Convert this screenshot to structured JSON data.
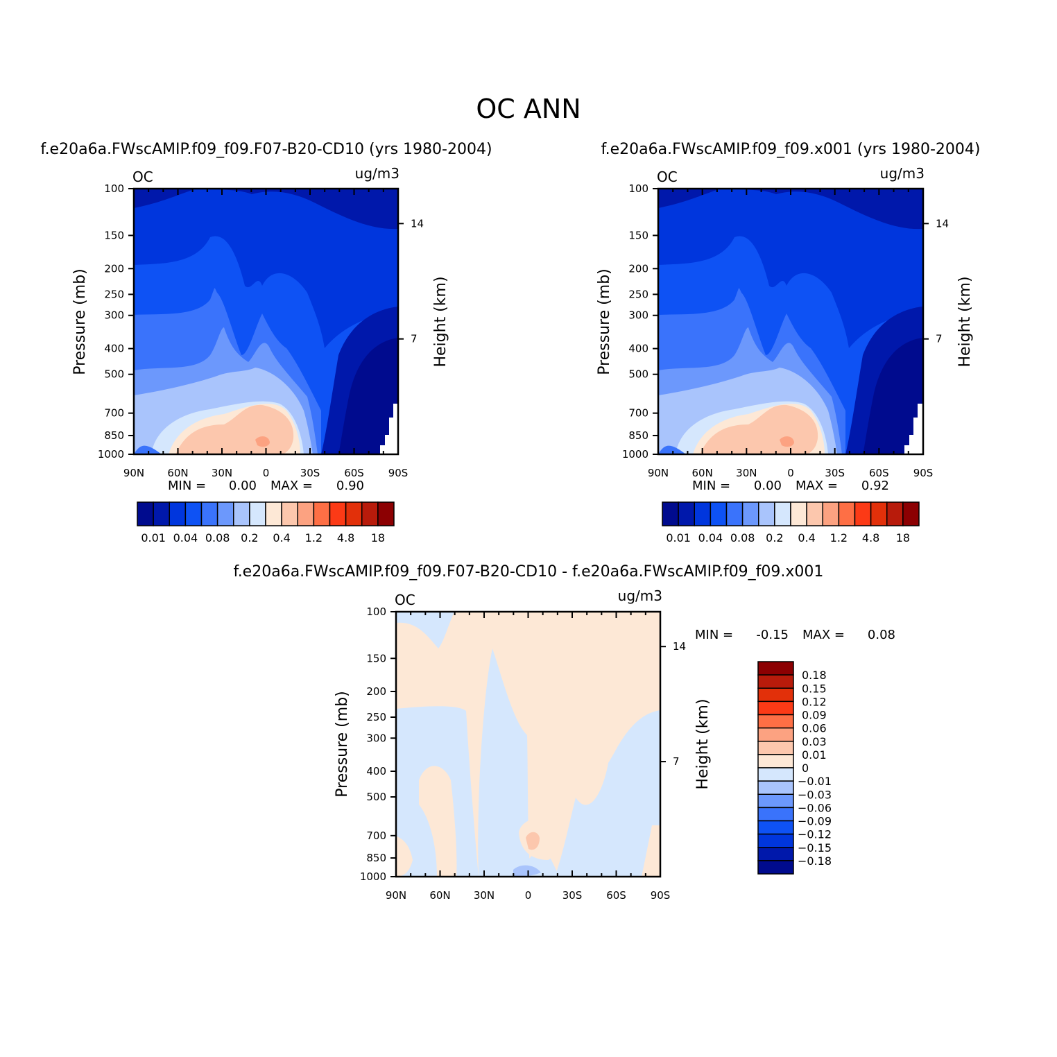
{
  "figure": {
    "title": "OC ANN"
  },
  "chart_data": [
    {
      "type": "heatmap",
      "title": "f.e20a6a.FWscAMIP.f09_f09.F07-B20-CD10 (yrs 1980-2004)",
      "variable_label": "OC",
      "units": "ug/m3",
      "xlabel": "",
      "ylabel": "Pressure (mb)",
      "y2label": "Height (km)",
      "x_ticks": [
        "90N",
        "60N",
        "30N",
        "0",
        "30S",
        "60S",
        "90S"
      ],
      "y_ticks": [
        100,
        150,
        200,
        250,
        300,
        400,
        500,
        700,
        850,
        1000
      ],
      "ylim": [
        1000,
        100
      ],
      "y2_ticks": [
        14,
        7
      ],
      "stats": {
        "min_label": "MIN =",
        "min": "0.00",
        "max_label": "MAX =",
        "max": "0.90"
      },
      "colorbar": {
        "orientation": "horizontal",
        "colors": [
          "#000b8e",
          "#0018ab",
          "#0036dd",
          "#0e52f4",
          "#3a73fb",
          "#6c98fc",
          "#a9c4fc",
          "#d5e7fd",
          "#fde8d6",
          "#fcc7ad",
          "#fca281",
          "#fe6f45",
          "#fc3a16",
          "#e2300a",
          "#b81b0b",
          "#8c0002"
        ],
        "labels": [
          "0.01",
          "0.04",
          "0.08",
          "0.2",
          "0.4",
          "1.2",
          "4.8",
          "18"
        ]
      }
    },
    {
      "type": "heatmap",
      "title": "f.e20a6a.FWscAMIP.f09_f09.x001 (yrs 1980-2004)",
      "variable_label": "OC",
      "units": "ug/m3",
      "xlabel": "",
      "ylabel": "Pressure (mb)",
      "y2label": "Height (km)",
      "x_ticks": [
        "90N",
        "60N",
        "30N",
        "0",
        "30S",
        "60S",
        "90S"
      ],
      "y_ticks": [
        100,
        150,
        200,
        250,
        300,
        400,
        500,
        700,
        850,
        1000
      ],
      "ylim": [
        1000,
        100
      ],
      "y2_ticks": [
        14,
        7
      ],
      "stats": {
        "min_label": "MIN =",
        "min": "0.00",
        "max_label": "MAX =",
        "max": "0.92"
      },
      "colorbar": {
        "orientation": "horizontal",
        "colors": [
          "#000b8e",
          "#0018ab",
          "#0036dd",
          "#0e52f4",
          "#3a73fb",
          "#6c98fc",
          "#a9c4fc",
          "#d5e7fd",
          "#fde8d6",
          "#fcc7ad",
          "#fca281",
          "#fe6f45",
          "#fc3a16",
          "#e2300a",
          "#b81b0b",
          "#8c0002"
        ],
        "labels": [
          "0.01",
          "0.04",
          "0.08",
          "0.2",
          "0.4",
          "1.2",
          "4.8",
          "18"
        ]
      }
    },
    {
      "type": "heatmap",
      "title": "f.e20a6a.FWscAMIP.f09_f09.F07-B20-CD10 - f.e20a6a.FWscAMIP.f09_f09.x001",
      "variable_label": "OC",
      "units": "ug/m3",
      "xlabel": "",
      "ylabel": "Pressure (mb)",
      "y2label": "Height (km)",
      "x_ticks": [
        "90N",
        "60N",
        "30N",
        "0",
        "30S",
        "60S",
        "90S"
      ],
      "y_ticks": [
        100,
        150,
        200,
        250,
        300,
        400,
        500,
        700,
        850,
        1000
      ],
      "ylim": [
        1000,
        100
      ],
      "y2_ticks": [
        14,
        7
      ],
      "stats": {
        "min_label": "MIN =",
        "min": "-0.15",
        "max_label": "MAX =",
        "max": "0.08"
      },
      "colorbar": {
        "orientation": "vertical",
        "colors_top_to_bottom": [
          "#8c0002",
          "#b81b0b",
          "#e2300a",
          "#fc3a16",
          "#fe6f45",
          "#fca281",
          "#fcc7ad",
          "#fde8d6",
          "#d5e7fd",
          "#a9c4fc",
          "#6c98fc",
          "#3a73fb",
          "#0e52f4",
          "#0036dd",
          "#0018ab",
          "#000b8e"
        ],
        "labels": [
          "0.18",
          "0.15",
          "0.12",
          "0.09",
          "0.06",
          "0.03",
          "0.01",
          "0",
          "-0.01",
          "-0.03",
          "-0.06",
          "-0.09",
          "-0.12",
          "-0.15",
          "-0.18"
        ]
      }
    }
  ]
}
